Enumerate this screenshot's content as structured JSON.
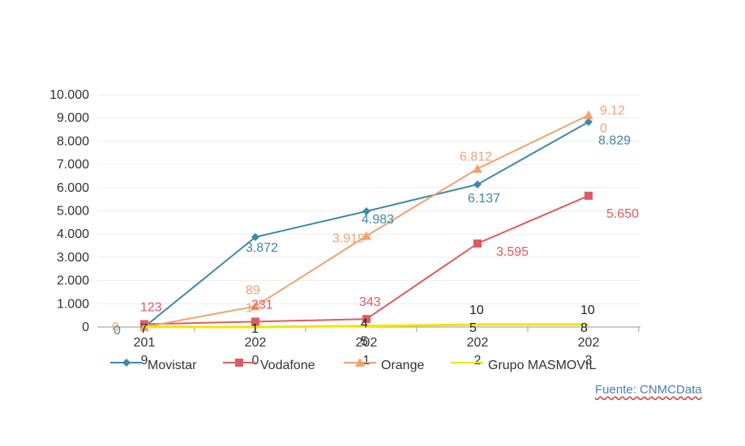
{
  "chart_data": {
    "type": "line",
    "categories": [
      "2019",
      "2020",
      "2021",
      "2022",
      "2023"
    ],
    "series": [
      {
        "name": "Movistar",
        "values": [
          0,
          3872,
          4983,
          6137,
          8829
        ],
        "labels": [
          "0",
          "3.872",
          "4.983",
          "6.137",
          "8.829"
        ],
        "color": "#3d89a6",
        "marker": "diamond"
      },
      {
        "name": "Vodafone",
        "values": [
          123,
          231,
          343,
          3595,
          5650
        ],
        "labels": [
          "123",
          "231",
          "343",
          "3.595",
          "5.650"
        ],
        "color": "#e05a5f",
        "marker": "square"
      },
      {
        "name": "Orange",
        "values": [
          0,
          891,
          3919,
          6812,
          9120
        ],
        "labels": [
          "0",
          "891",
          "3.919",
          "6.812",
          "9.120"
        ],
        "color": "#f0a371",
        "marker": "triangle"
      },
      {
        "name": "Grupo MASMOVIL",
        "values": [
          7,
          1,
          45,
          105,
          108
        ],
        "labels": [
          "7",
          "1",
          "45",
          "105",
          "108"
        ],
        "color": "#f2e600",
        "marker": "line"
      }
    ],
    "y_ticks": [
      "0",
      "1.000",
      "2.000",
      "3.000",
      "4.000",
      "5.000",
      "6.000",
      "7.000",
      "8.000",
      "9.000",
      "10.000"
    ],
    "ylim": [
      0,
      10000
    ],
    "grid": true,
    "legend": "bottom"
  },
  "source": "Fuente: CNMCData"
}
